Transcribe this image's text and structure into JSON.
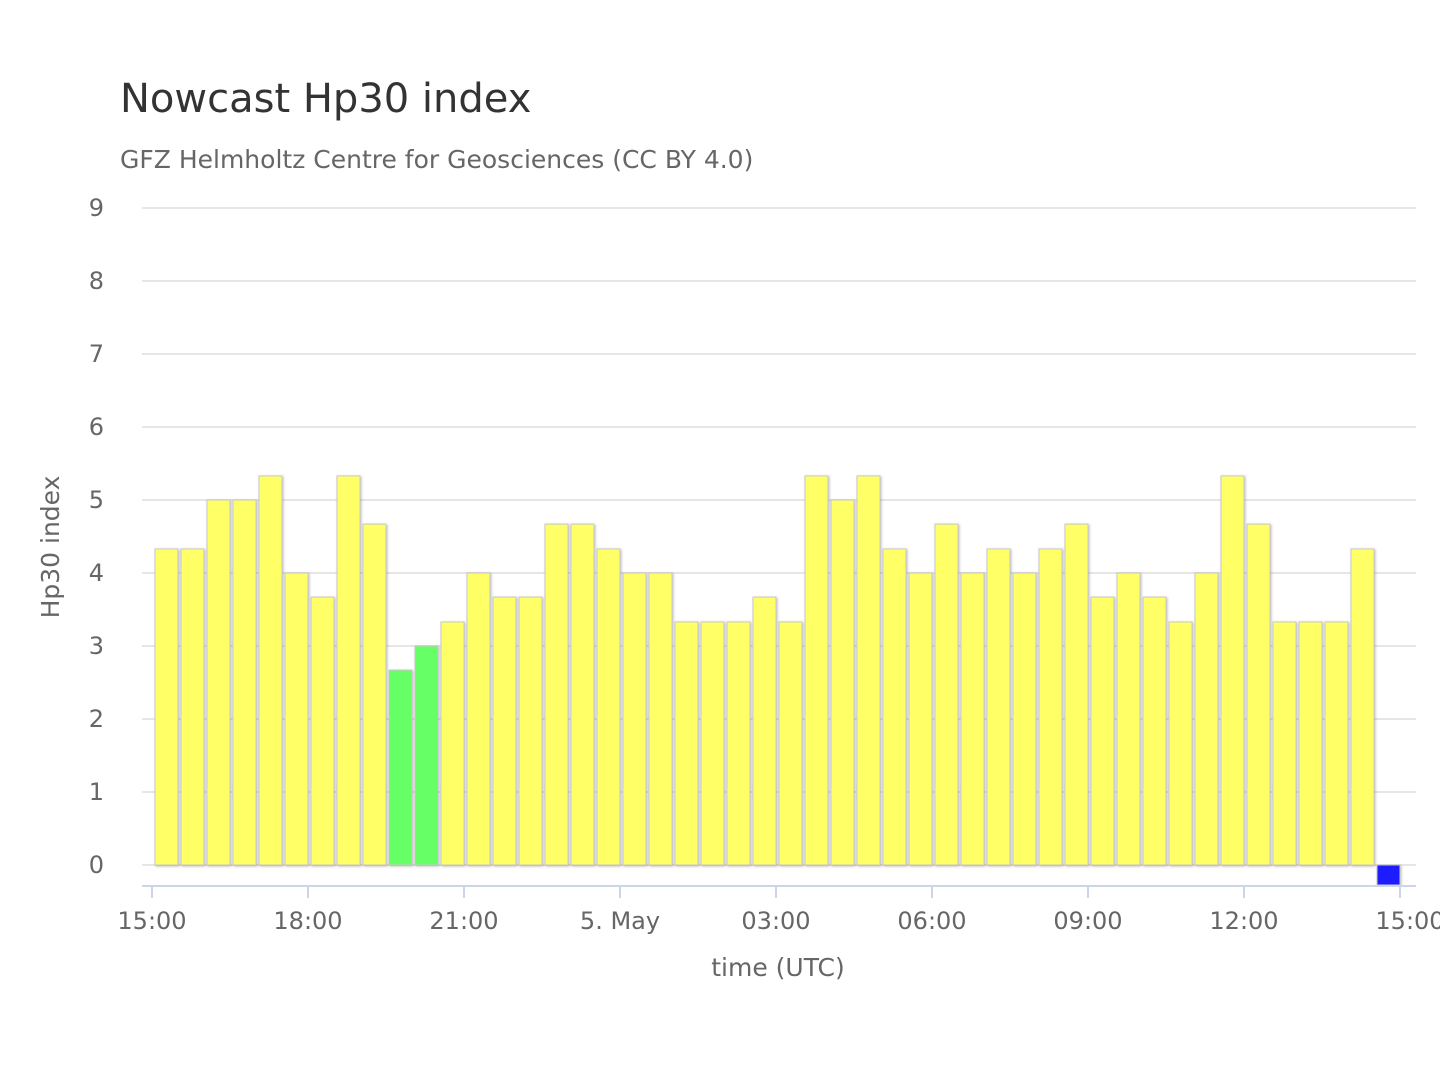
{
  "chart_data": {
    "type": "bar",
    "title": "Nowcast Hp30 index",
    "subtitle": "GFZ Helmholtz Centre for Geosciences (CC BY 4.0)",
    "xlabel": "time (UTC)",
    "ylabel": "Hp30 index",
    "ylim": [
      0,
      9
    ],
    "y_ticks": [
      "0",
      "1",
      "2",
      "3",
      "4",
      "5",
      "6",
      "7",
      "8",
      "9"
    ],
    "x_ticks": [
      "15:00",
      "18:00",
      "21:00",
      "5. May",
      "03:00",
      "06:00",
      "09:00",
      "12:00",
      "15:00"
    ],
    "grid": true,
    "legend": "none",
    "colors": {
      "yellow": "#ffff66",
      "green": "#66ff66",
      "blue": "#1a1aff"
    },
    "bar_interval": "30 min",
    "values": [
      4.33,
      4.33,
      5.0,
      5.0,
      5.33,
      4.0,
      3.67,
      5.33,
      4.67,
      2.67,
      3.0,
      3.33,
      4.0,
      3.67,
      3.67,
      4.67,
      4.67,
      4.33,
      4.0,
      4.0,
      3.33,
      3.33,
      3.33,
      3.67,
      3.33,
      5.33,
      5.0,
      5.33,
      4.33,
      4.0,
      4.67,
      4.0,
      4.33,
      4.0,
      4.33,
      4.67,
      3.67,
      4.0,
      3.67,
      3.33,
      4.0,
      5.33,
      4.67,
      3.33,
      3.33,
      3.33,
      4.33,
      0.0
    ],
    "bar_colors": [
      "yellow",
      "yellow",
      "yellow",
      "yellow",
      "yellow",
      "yellow",
      "yellow",
      "yellow",
      "yellow",
      "green",
      "green",
      "yellow",
      "yellow",
      "yellow",
      "yellow",
      "yellow",
      "yellow",
      "yellow",
      "yellow",
      "yellow",
      "yellow",
      "yellow",
      "yellow",
      "yellow",
      "yellow",
      "yellow",
      "yellow",
      "yellow",
      "yellow",
      "yellow",
      "yellow",
      "yellow",
      "yellow",
      "yellow",
      "yellow",
      "yellow",
      "yellow",
      "yellow",
      "yellow",
      "yellow",
      "yellow",
      "yellow",
      "yellow",
      "yellow",
      "yellow",
      "yellow",
      "yellow",
      "blue"
    ]
  }
}
